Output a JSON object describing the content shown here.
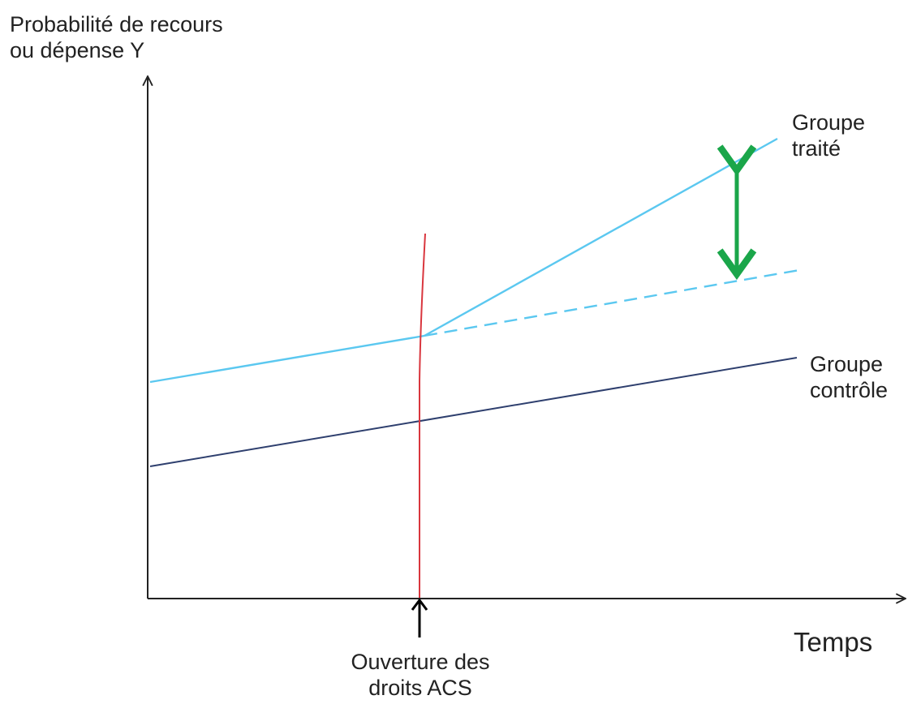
{
  "labels": {
    "y_axis_line1": "Probabilité de recours",
    "y_axis_line2": "ou dépense Y",
    "x_axis": "Temps",
    "treated_line1": "Groupe",
    "treated_line2": "traité",
    "control_line1": "Groupe",
    "control_line2": "contrôle",
    "event_line1": "Ouverture des",
    "event_line2": "droits ACS"
  },
  "colors": {
    "axis": "#222222",
    "treated": "#5bc8f0",
    "control": "#2e3f6e",
    "event_line": "#d9363e",
    "effect_arrow": "#1aa64a",
    "event_arrow": "#000000"
  },
  "icons": {
    "effect": "double-arrow-vertical",
    "event": "arrow-up"
  }
}
